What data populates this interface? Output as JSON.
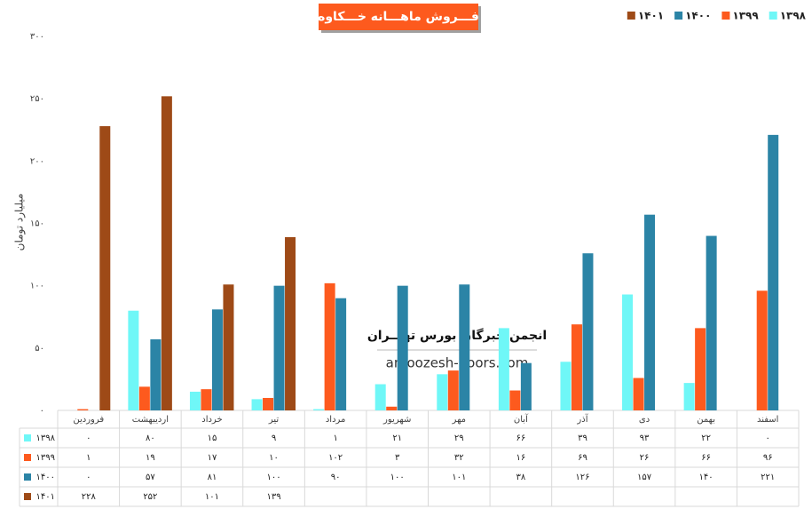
{
  "chart_data": {
    "type": "bar",
    "title": "فـــروش ماهـــانه خـــکاوه",
    "y_label": "میلیارد تومان",
    "annotations": [
      "انجمن خبرگان بورس تهـــران",
      "amoozesh-boors.com"
    ],
    "categories": [
      "فروردین",
      "اردیبهشت",
      "خرداد",
      "تیر",
      "مرداد",
      "شهریور",
      "مهر",
      "آبان",
      "آذر",
      "دی",
      "بهمن",
      "اسفند"
    ],
    "series": [
      {
        "name": "۱۳۹۸",
        "color": "#6ff7f7",
        "values": [
          0,
          80,
          15,
          9,
          1,
          21,
          29,
          66,
          39,
          93,
          22,
          0
        ],
        "value_labels": [
          "۰",
          "۸۰",
          "۱۵",
          "۹",
          "۱",
          "۲۱",
          "۲۹",
          "۶۶",
          "۳۹",
          "۹۳",
          "۲۲",
          "۰"
        ]
      },
      {
        "name": "۱۳۹۹",
        "color": "#fd5a1e",
        "values": [
          1,
          19,
          17,
          10,
          102,
          3,
          32,
          16,
          69,
          26,
          66,
          96
        ],
        "value_labels": [
          "۱",
          "۱۹",
          "۱۷",
          "۱۰",
          "۱۰۲",
          "۳",
          "۳۲",
          "۱۶",
          "۶۹",
          "۲۶",
          "۶۶",
          "۹۶"
        ]
      },
      {
        "name": "۱۴۰۰",
        "color": "#2b84a6",
        "values": [
          0,
          57,
          81,
          100,
          90,
          100,
          101,
          38,
          126,
          157,
          140,
          221
        ],
        "value_labels": [
          "۰",
          "۵۷",
          "۸۱",
          "۱۰۰",
          "۹۰",
          "۱۰۰",
          "۱۰۱",
          "۳۸",
          "۱۲۶",
          "۱۵۷",
          "۱۴۰",
          "۲۲۱"
        ]
      },
      {
        "name": "۱۴۰۱",
        "color": "#9e4a17",
        "values": [
          228,
          252,
          101,
          139,
          null,
          null,
          null,
          null,
          null,
          null,
          null,
          null
        ],
        "value_labels": [
          "۲۲۸",
          "۲۵۲",
          "۱۰۱",
          "۱۳۹",
          null,
          null,
          null,
          null,
          null,
          null,
          null,
          null
        ]
      }
    ],
    "ylim": [
      0,
      300
    ],
    "yticks": [
      {
        "value": 0,
        "label": "۰"
      },
      {
        "value": 50,
        "label": "۵۰"
      },
      {
        "value": 100,
        "label": "۱۰۰"
      },
      {
        "value": 150,
        "label": "۱۵۰"
      },
      {
        "value": 200,
        "label": "۲۰۰"
      },
      {
        "value": 250,
        "label": "۲۵۰"
      },
      {
        "value": 300,
        "label": "۳۰۰"
      }
    ],
    "grid": false,
    "legend": "top-right"
  }
}
